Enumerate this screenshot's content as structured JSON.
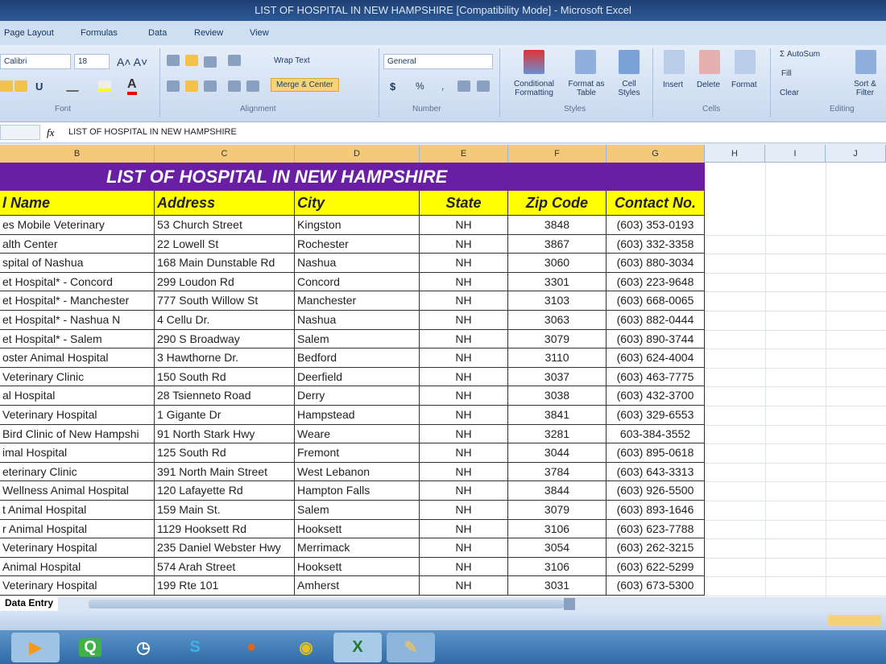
{
  "window": {
    "title": "LIST OF HOSPITAL IN NEW HAMPSHIRE [Compatibility Mode] - Microsoft Excel"
  },
  "ribbon_tabs": [
    "Page Layout",
    "Formulas",
    "Data",
    "Review",
    "View"
  ],
  "ribbon": {
    "font_name": "Calibri",
    "font_size": "18",
    "wrap_text": "Wrap Text",
    "merge_center": "Merge & Center",
    "number_format": "General",
    "currency": "$",
    "percent": "%",
    "comma": ",",
    "conditional_formatting": "Conditional Formatting",
    "format_as_table": "Format as Table",
    "cell_styles": "Cell Styles",
    "insert": "Insert",
    "delete": "Delete",
    "format": "Format",
    "autosum": "AutoSum",
    "fill": "Fill",
    "clear": "Clear",
    "sort_filter": "Sort & Filter",
    "groups": [
      "Font",
      "Alignment",
      "Number",
      "Styles",
      "Cells",
      "Editing"
    ]
  },
  "formula_bar": {
    "fx": "fx",
    "content": "LIST OF HOSPITAL IN NEW HAMPSHIRE"
  },
  "columns": [
    "B",
    "C",
    "D",
    "E",
    "F",
    "G",
    "H",
    "I",
    "J"
  ],
  "sheet": {
    "title": "LIST OF HOSPITAL IN NEW HAMPSHIRE",
    "headers": [
      "l Name",
      "Address",
      "City",
      "State",
      "Zip Code",
      "Contact No."
    ],
    "rows": [
      [
        "es Mobile Veterinary",
        "53 Church Street",
        "Kingston",
        "NH",
        "3848",
        "(603) 353-0193"
      ],
      [
        "alth Center",
        "22 Lowell St",
        "Rochester",
        "NH",
        "3867",
        "(603) 332-3358"
      ],
      [
        "spital of Nashua",
        "168 Main Dunstable Rd",
        "Nashua",
        "NH",
        "3060",
        "(603) 880-3034"
      ],
      [
        "et Hospital* - Concord",
        "299 Loudon Rd",
        "Concord",
        "NH",
        "3301",
        "(603) 223-9648"
      ],
      [
        "et Hospital* - Manchester",
        "777 South Willow St",
        "Manchester",
        "NH",
        "3103",
        "(603) 668-0065"
      ],
      [
        "et Hospital* - Nashua N",
        "4 Cellu Dr.",
        "Nashua",
        "NH",
        "3063",
        "(603) 882-0444"
      ],
      [
        "et Hospital* - Salem",
        "290 S Broadway",
        "Salem",
        "NH",
        "3079",
        "(603) 890-3744"
      ],
      [
        "oster Animal Hospital",
        "3 Hawthorne Dr.",
        "Bedford",
        "NH",
        "3110",
        "(603) 624-4004"
      ],
      [
        "Veterinary Clinic",
        "150 South Rd",
        "Deerfield",
        "NH",
        "3037",
        "(603) 463-7775"
      ],
      [
        "al Hospital",
        "28 Tsienneto Road",
        "Derry",
        "NH",
        "3038",
        "(603) 432-3700"
      ],
      [
        "Veterinary Hospital",
        "1 Gigante Dr",
        "Hampstead",
        "NH",
        "3841",
        "(603) 329-6553"
      ],
      [
        "Bird Clinic of New Hampshi",
        "91 North Stark Hwy",
        "Weare",
        "NH",
        "3281",
        "603-384-3552"
      ],
      [
        "imal Hospital",
        "125 South Rd",
        "Fremont",
        "NH",
        "3044",
        "(603) 895-0618"
      ],
      [
        "eterinary Clinic",
        "391 North Main Street",
        "West Lebanon",
        "NH",
        "3784",
        "(603) 643-3313"
      ],
      [
        "Wellness Animal Hospital",
        "120 Lafayette Rd",
        "Hampton Falls",
        "NH",
        "3844",
        "(603) 926-5500"
      ],
      [
        "t Animal Hospital",
        "159 Main St.",
        "Salem",
        "NH",
        "3079",
        "(603) 893-1646"
      ],
      [
        "r Animal Hospital",
        "1129 Hooksett Rd",
        "Hooksett",
        "NH",
        "3106",
        "(603) 623-7788"
      ],
      [
        " Veterinary Hospital",
        "235 Daniel Webster Hwy",
        "Merrimack",
        "NH",
        "3054",
        "(603) 262-3215"
      ],
      [
        "Animal Hospital",
        "574 Arah Street",
        "Hooksett",
        "NH",
        "3106",
        "(603) 622-5299"
      ],
      [
        "Veterinary Hospital",
        "199 Rte 101",
        "Amherst",
        "NH",
        "3031",
        "(603) 673-5300"
      ]
    ]
  },
  "sheet_tab": "Data Entry",
  "colors": {
    "title_band": "#6a1ea3",
    "header_fill": "#ffff00"
  },
  "taskbar_icons": [
    "media-player-icon",
    "app-green-icon",
    "clock-icon",
    "skype-icon",
    "firefox-icon",
    "chrome-icon",
    "excel-icon",
    "tool-icon"
  ]
}
